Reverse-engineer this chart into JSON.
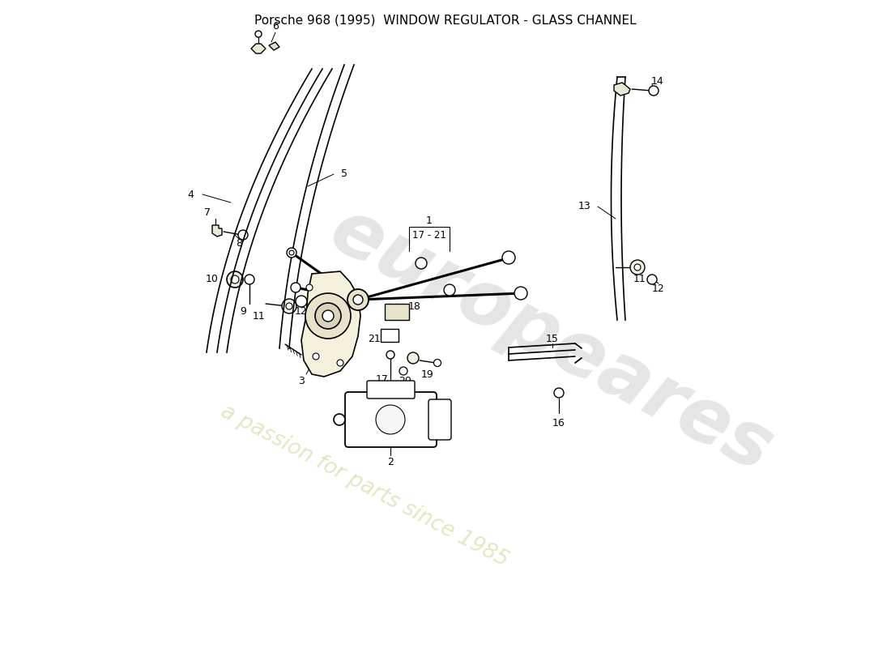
{
  "title": "Porsche 968 (1995)  WINDOW REGULATOR - GLASS CHANNEL",
  "bg_color": "#ffffff",
  "watermark1": "europeares",
  "watermark2": "a passion for parts since 1985",
  "fig_w": 11.0,
  "fig_h": 8.0
}
